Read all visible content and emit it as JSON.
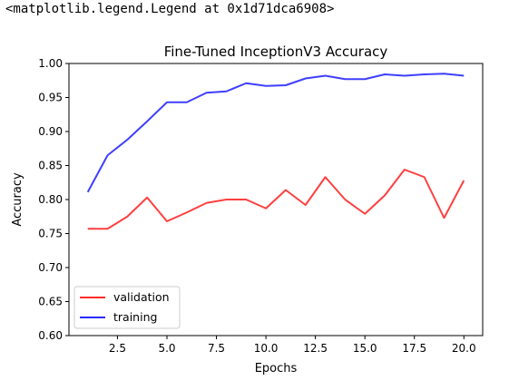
{
  "output_repr": "<matplotlib.legend.Legend at 0x1d71dca6908>",
  "chart_data": {
    "type": "line",
    "title": "Fine-Tuned InceptionV3 Accuracy",
    "xlabel": "Epochs",
    "ylabel": "Accuracy",
    "xlim": [
      0.05,
      20.95
    ],
    "ylim": [
      0.6,
      1.0
    ],
    "xticks": [
      2.5,
      5.0,
      7.5,
      10.0,
      12.5,
      15.0,
      17.5,
      20.0
    ],
    "xtick_labels": [
      "2.5",
      "5.0",
      "7.5",
      "10.0",
      "12.5",
      "15.0",
      "17.5",
      "20.0"
    ],
    "yticks": [
      0.6,
      0.65,
      0.7,
      0.75,
      0.8,
      0.85,
      0.9,
      0.95,
      1.0
    ],
    "ytick_labels": [
      "0.60",
      "0.65",
      "0.70",
      "0.75",
      "0.80",
      "0.85",
      "0.90",
      "0.95",
      "1.00"
    ],
    "grid": false,
    "legend_position": "lower-left",
    "x": [
      1,
      2,
      3,
      4,
      5,
      6,
      7,
      8,
      9,
      10,
      11,
      12,
      13,
      14,
      15,
      16,
      17,
      18,
      19,
      20
    ],
    "series": [
      {
        "name": "validation",
        "color": "#ff2a2a",
        "values": [
          0.757,
          0.757,
          0.775,
          0.803,
          0.768,
          0.781,
          0.795,
          0.8,
          0.8,
          0.787,
          0.814,
          0.792,
          0.833,
          0.8,
          0.779,
          0.806,
          0.844,
          0.833,
          0.773,
          0.828
        ]
      },
      {
        "name": "training",
        "color": "#2a2aff",
        "values": [
          0.811,
          0.865,
          0.888,
          0.915,
          0.943,
          0.943,
          0.957,
          0.959,
          0.971,
          0.967,
          0.968,
          0.978,
          0.982,
          0.977,
          0.977,
          0.984,
          0.982,
          0.984,
          0.985,
          0.982
        ]
      }
    ]
  }
}
